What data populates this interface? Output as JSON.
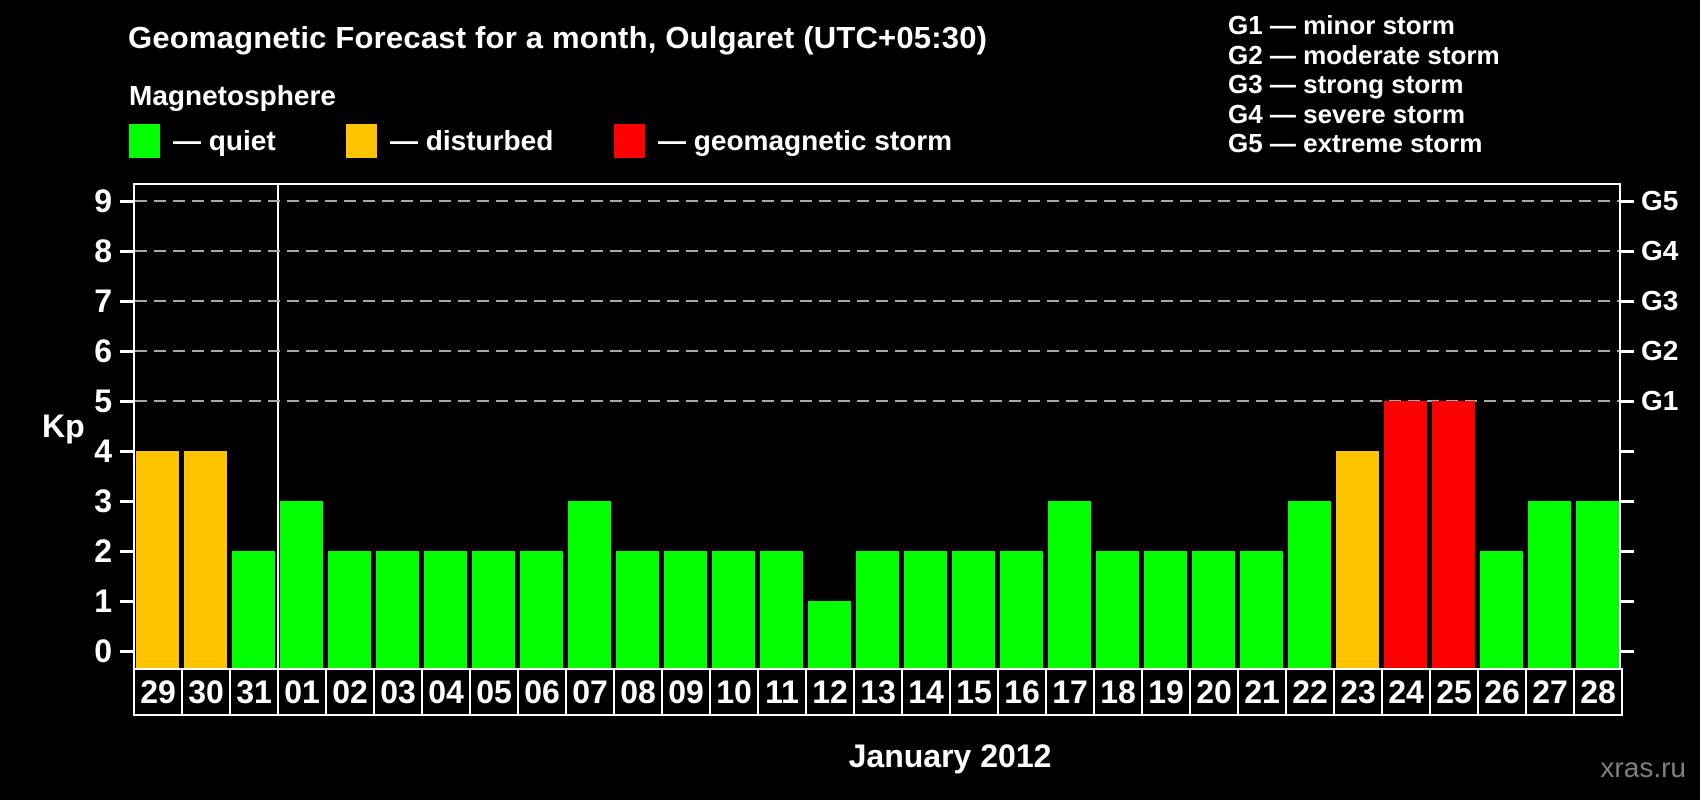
{
  "title": "Geomagnetic Forecast for a month, Oulgaret (UTC+05:30)",
  "subtitle": "Magnetosphere",
  "legend": {
    "items": [
      {
        "label": "— quiet",
        "status": "quiet",
        "color": "#00ff00"
      },
      {
        "label": "— disturbed",
        "status": "disturbed",
        "color": "#ffc400"
      },
      {
        "label": "— geomagnetic storm",
        "status": "storm",
        "color": "#ff0000"
      }
    ]
  },
  "g_scale_legend": {
    "lines": [
      "G1 — minor storm",
      "G2 — moderate storm",
      "G3 — strong storm",
      "G4 — severe storm",
      "G5 — extreme storm"
    ]
  },
  "watermark": "xras.ru",
  "chart_data": {
    "type": "bar",
    "title": "Geomagnetic Forecast for a month, Oulgaret (UTC+05:30)",
    "xlabel": "January 2012",
    "ylabel": "Kp",
    "ylim": [
      0,
      9
    ],
    "y_ticks": [
      0,
      1,
      2,
      3,
      4,
      5,
      6,
      7,
      8,
      9
    ],
    "gridline_levels": [
      5,
      6,
      7,
      8,
      9
    ],
    "grid": "dashed horizontal lines at G-storm levels only",
    "legend_position": "top",
    "right_axis": [
      {
        "label": "G1",
        "level": 5
      },
      {
        "label": "G2",
        "level": 6
      },
      {
        "label": "G3",
        "level": 7
      },
      {
        "label": "G4",
        "level": 8
      },
      {
        "label": "G5",
        "level": 9
      }
    ],
    "categories": [
      "29",
      "30",
      "31",
      "01",
      "02",
      "03",
      "04",
      "05",
      "06",
      "07",
      "08",
      "09",
      "10",
      "11",
      "12",
      "13",
      "14",
      "15",
      "16",
      "17",
      "18",
      "19",
      "20",
      "21",
      "22",
      "23",
      "24",
      "25",
      "26",
      "27",
      "28"
    ],
    "values": [
      4,
      4,
      2,
      3,
      2,
      2,
      2,
      2,
      2,
      3,
      2,
      2,
      2,
      2,
      1,
      2,
      2,
      2,
      2,
      3,
      2,
      2,
      2,
      2,
      3,
      4,
      5,
      5,
      2,
      3,
      3
    ],
    "statuses": [
      "disturbed",
      "disturbed",
      "quiet",
      "quiet",
      "quiet",
      "quiet",
      "quiet",
      "quiet",
      "quiet",
      "quiet",
      "quiet",
      "quiet",
      "quiet",
      "quiet",
      "quiet",
      "quiet",
      "quiet",
      "quiet",
      "quiet",
      "quiet",
      "quiet",
      "quiet",
      "quiet",
      "quiet",
      "quiet",
      "disturbed",
      "storm",
      "storm",
      "quiet",
      "quiet",
      "quiet"
    ],
    "status_colors": {
      "quiet": "#00ff00",
      "disturbed": "#ffc400",
      "storm": "#ff0000"
    },
    "separator_after_index": 2
  }
}
